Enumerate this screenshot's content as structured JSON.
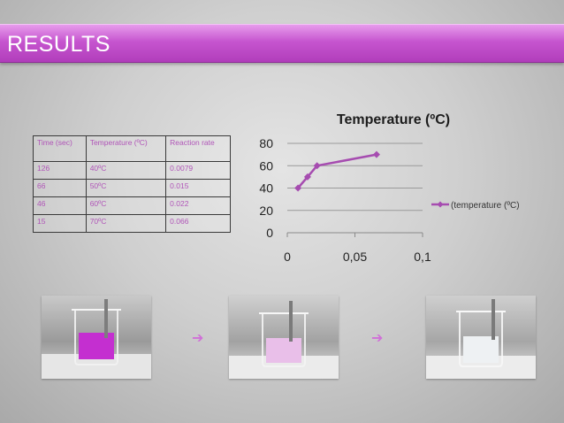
{
  "slide": {
    "title": "RESULTS",
    "arrow_glyph": "➔"
  },
  "table": {
    "headers": [
      "Time (sec)",
      "Temperature (ºC)",
      "Reaction rate"
    ],
    "rows": [
      [
        "126",
        "40ºC",
        "0.0079"
      ],
      [
        "66",
        "50ºC",
        "0.015"
      ],
      [
        "46",
        "60ºC",
        "0.022"
      ],
      [
        "15",
        "70ºC",
        "0.066"
      ]
    ]
  },
  "photos": [
    {
      "name": "beaker-photo-purple",
      "liquid_color": "#c42fd0"
    },
    {
      "name": "beaker-photo-pale",
      "liquid_color": "#e9bfe9"
    },
    {
      "name": "beaker-photo-clear",
      "liquid_color": "#eef1f3"
    }
  ],
  "chart_data": {
    "type": "line",
    "title": "Temperature (ºC)",
    "xlabel": "",
    "ylabel": "",
    "xlim": [
      0,
      0.1
    ],
    "ylim": [
      0,
      80
    ],
    "x_ticks": [
      0,
      0.05,
      0.1
    ],
    "x_tick_labels": [
      "0",
      "0,05",
      "0,1"
    ],
    "y_ticks": [
      0,
      20,
      40,
      60,
      80
    ],
    "y_tick_labels": [
      "0",
      "20",
      "40",
      "60",
      "80"
    ],
    "grid": "horizontal",
    "legend": "right",
    "series": [
      {
        "name": "(temperature (ºC)",
        "color": "#a64cb0",
        "x": [
          0.0079,
          0.015,
          0.022,
          0.066
        ],
        "y": [
          40,
          50,
          60,
          70
        ]
      }
    ]
  }
}
